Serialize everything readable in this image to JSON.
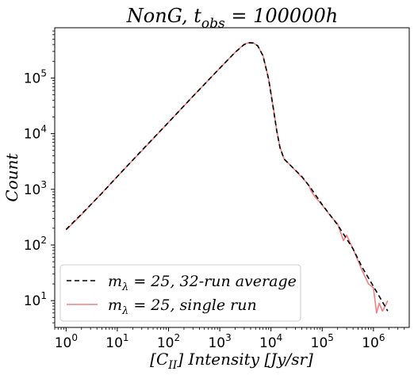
{
  "chart_data": {
    "type": "line",
    "title": "NonG, t_obs = 100000h",
    "title_parts": {
      "prefix": "NonG, t",
      "subscript": "obs",
      "suffix": " = 100000h"
    },
    "xlabel": "[C_II] Intensity [Jy/sr]",
    "xlabel_parts": {
      "prefix": "[C",
      "subscript": "II",
      "suffix": "] Intensity [Jy/sr]"
    },
    "ylabel": "Count",
    "xscale": "log",
    "yscale": "log",
    "xlim": [
      0.6,
      5000000
    ],
    "ylim": [
      3.3,
      800000
    ],
    "x_ticks": [
      {
        "value": 1,
        "base": "10",
        "exp": "0"
      },
      {
        "value": 10,
        "base": "10",
        "exp": "1"
      },
      {
        "value": 100,
        "base": "10",
        "exp": "2"
      },
      {
        "value": 1000,
        "base": "10",
        "exp": "3"
      },
      {
        "value": 10000,
        "base": "10",
        "exp": "4"
      },
      {
        "value": 100000,
        "base": "10",
        "exp": "5"
      },
      {
        "value": 1000000,
        "base": "10",
        "exp": "6"
      }
    ],
    "y_ticks": [
      {
        "value": 10,
        "base": "10",
        "exp": "1"
      },
      {
        "value": 100,
        "base": "10",
        "exp": "2"
      },
      {
        "value": 1000,
        "base": "10",
        "exp": "3"
      },
      {
        "value": 10000,
        "base": "10",
        "exp": "4"
      },
      {
        "value": 100000,
        "base": "10",
        "exp": "5"
      }
    ],
    "grid": false,
    "legend_position": "lower-left",
    "series": [
      {
        "name": "m_λ = 25, 32-run average",
        "legend_parts": {
          "prefix": "m",
          "subscript": "λ",
          "suffix": " = 25, 32-run average"
        },
        "color": "#000000",
        "style": "dashed",
        "x": [
          1,
          2,
          5,
          10,
          30,
          100,
          300,
          1000,
          2000,
          3000,
          3800,
          4500,
          5500,
          7000,
          9000,
          11000,
          13000,
          15000,
          18000,
          25000,
          40000,
          60000,
          100000,
          200000,
          400000,
          600000,
          1000000,
          1500000,
          1900000
        ],
        "y": [
          190,
          360,
          850,
          1700,
          5000,
          16000,
          47000,
          150000,
          290000,
          400000,
          430000,
          425000,
          380000,
          250000,
          95000,
          30000,
          11000,
          5600,
          3500,
          2600,
          1700,
          1050,
          530,
          230,
          85,
          40,
          18,
          9.5,
          6.5
        ]
      },
      {
        "name": "m_λ = 25, single run",
        "legend_parts": {
          "prefix": "m",
          "subscript": "λ",
          "suffix": " = 25, single run"
        },
        "color": "#f08080",
        "style": "solid",
        "x": [
          1,
          2,
          5,
          10,
          30,
          100,
          300,
          1000,
          2000,
          3000,
          3800,
          4500,
          5500,
          7000,
          9000,
          11000,
          13000,
          15000,
          18000,
          25000,
          40000,
          55000,
          60000,
          70000,
          100000,
          150000,
          200000,
          260000,
          300000,
          400000,
          600000,
          800000,
          1000000,
          1150000,
          1300000,
          1500000,
          1700000,
          1900000
        ],
        "y": [
          185,
          350,
          860,
          1700,
          4900,
          16000,
          47000,
          150000,
          290000,
          405000,
          435000,
          428000,
          378000,
          252000,
          96000,
          31000,
          11200,
          5700,
          3550,
          2600,
          1650,
          1180,
          960,
          760,
          520,
          320,
          240,
          120,
          150,
          85,
          35,
          20,
          17,
          6,
          9,
          6.5,
          8,
          10
        ]
      }
    ]
  }
}
